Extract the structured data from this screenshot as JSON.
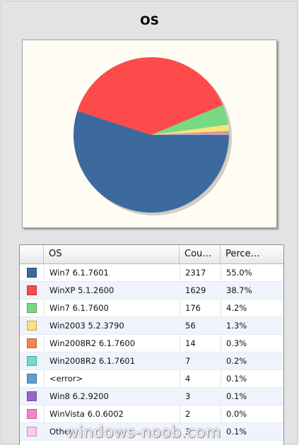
{
  "chart_data": {
    "type": "pie",
    "title": "OS",
    "slices": [
      {
        "label": "Win7 6.1.7601",
        "count": 2317,
        "percent": "55.0%",
        "value": 55.0,
        "color": "#3d6a9e"
      },
      {
        "label": "WinXP 5.1.2600",
        "count": 1629,
        "percent": "38.7%",
        "value": 38.7,
        "color": "#fd4a4a"
      },
      {
        "label": "Win7 6.1.7600",
        "count": 176,
        "percent": "4.2%",
        "value": 4.2,
        "color": "#77d982"
      },
      {
        "label": "Win2003 5.2.3790",
        "count": 56,
        "percent": "1.3%",
        "value": 1.3,
        "color": "#f9e280"
      },
      {
        "label": "Win2008R2 6.1.7600",
        "count": 14,
        "percent": "0.3%",
        "value": 0.3,
        "color": "#f58454"
      },
      {
        "label": "Win2008R2 6.1.7601",
        "count": 7,
        "percent": "0.2%",
        "value": 0.2,
        "color": "#76d8d0"
      },
      {
        "label": "<error>",
        "count": 4,
        "percent": "0.1%",
        "value": 0.1,
        "color": "#5f9fd2"
      },
      {
        "label": "Win8 6.2.9200",
        "count": 3,
        "percent": "0.1%",
        "value": 0.1,
        "color": "#9a66c8"
      },
      {
        "label": "WinVista 6.0.6002",
        "count": 2,
        "percent": "0.0%",
        "value": 0.0,
        "color": "#f784cc"
      },
      {
        "label": "Other",
        "count": 3,
        "percent": "0.1%",
        "value": 0.1,
        "color": "#fcc8f2"
      }
    ]
  },
  "grid": {
    "columns": [
      "OS",
      "Cou…",
      "Perce…"
    ]
  },
  "watermark": "windows-noob.com"
}
